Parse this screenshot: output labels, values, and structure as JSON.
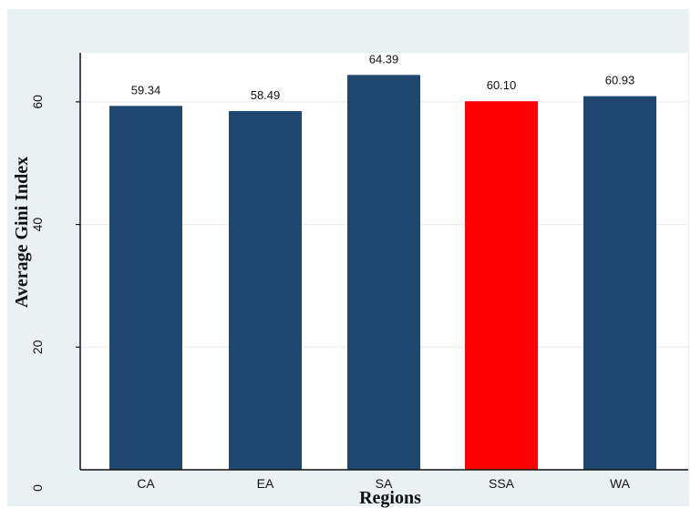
{
  "chart_data": {
    "type": "bar",
    "categories": [
      "CA",
      "EA",
      "SA",
      "SSA",
      "WA"
    ],
    "values": [
      59.34,
      58.49,
      64.39,
      60.1,
      60.93
    ],
    "value_labels": [
      "59.34",
      "58.49",
      "64.39",
      "60.10",
      "60.93"
    ],
    "bar_colors": [
      "#1f4770",
      "#1f4770",
      "#1f4770",
      "#ff0000",
      "#1f4770"
    ],
    "title": "",
    "xlabel": "Regions",
    "ylabel": "Average Gini Index",
    "ylim": [
      0,
      68
    ],
    "yticks": [
      0,
      20,
      40,
      60
    ],
    "ytick_labels": [
      "0",
      "20",
      "40",
      "60"
    ],
    "grid": true,
    "plot_background": "#eaf1f3",
    "grid_color": "#e3ecef"
  }
}
